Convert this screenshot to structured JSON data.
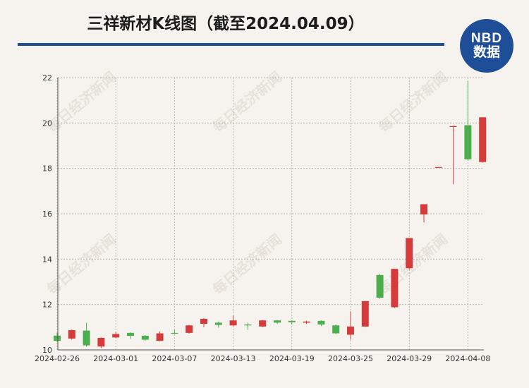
{
  "chart_data": {
    "type": "candlestick",
    "title": "三祥新材K线图（截至2024.04.09）",
    "xlabel": "",
    "ylabel": "",
    "ylim": [
      10,
      22
    ],
    "yticks": [
      10,
      12,
      14,
      16,
      18,
      20,
      22
    ],
    "grid": true,
    "colors": {
      "up": "#d63b3b",
      "down": "#4cae4c"
    },
    "x_tick_labels": [
      "2024-02-26",
      "2024-03-01",
      "2024-03-07",
      "2024-03-13",
      "2024-03-19",
      "2024-03-25",
      "2024-03-29",
      "2024-04-08"
    ],
    "candles": [
      {
        "date": "2024-02-26",
        "open": 10.63,
        "close": 10.4,
        "high": 10.75,
        "low": 10.35
      },
      {
        "date": "2024-02-27",
        "open": 10.5,
        "close": 10.87,
        "high": 10.9,
        "low": 10.45
      },
      {
        "date": "2024-02-28",
        "open": 10.85,
        "close": 10.2,
        "high": 11.2,
        "low": 10.15
      },
      {
        "date": "2024-02-29",
        "open": 10.15,
        "close": 10.53,
        "high": 10.55,
        "low": 10.08
      },
      {
        "date": "2024-03-01",
        "open": 10.55,
        "close": 10.7,
        "high": 10.8,
        "low": 10.52
      },
      {
        "date": "2024-03-04",
        "open": 10.75,
        "close": 10.62,
        "high": 10.78,
        "low": 10.48
      },
      {
        "date": "2024-03-05",
        "open": 10.62,
        "close": 10.45,
        "high": 10.65,
        "low": 10.4
      },
      {
        "date": "2024-03-06",
        "open": 10.4,
        "close": 10.73,
        "high": 10.82,
        "low": 10.38
      },
      {
        "date": "2024-03-07",
        "open": 10.75,
        "close": 10.73,
        "high": 10.88,
        "low": 10.7
      },
      {
        "date": "2024-03-08",
        "open": 10.75,
        "close": 11.08,
        "high": 11.1,
        "low": 10.72
      },
      {
        "date": "2024-03-11",
        "open": 11.15,
        "close": 11.37,
        "high": 11.4,
        "low": 11.0
      },
      {
        "date": "2024-03-12",
        "open": 11.2,
        "close": 11.1,
        "high": 11.25,
        "low": 10.98
      },
      {
        "date": "2024-03-13",
        "open": 11.08,
        "close": 11.3,
        "high": 11.52,
        "low": 11.05
      },
      {
        "date": "2024-03-14",
        "open": 11.12,
        "close": 11.08,
        "high": 11.2,
        "low": 10.88
      },
      {
        "date": "2024-03-15",
        "open": 11.03,
        "close": 11.3,
        "high": 11.32,
        "low": 11.0
      },
      {
        "date": "2024-03-18",
        "open": 11.3,
        "close": 11.2,
        "high": 11.32,
        "low": 11.15
      },
      {
        "date": "2024-03-19",
        "open": 11.28,
        "close": 11.22,
        "high": 11.3,
        "low": 11.12
      },
      {
        "date": "2024-03-20",
        "open": 11.2,
        "close": 11.25,
        "high": 11.28,
        "low": 11.15
      },
      {
        "date": "2024-03-21",
        "open": 11.28,
        "close": 11.12,
        "high": 11.3,
        "low": 11.05
      },
      {
        "date": "2024-03-22",
        "open": 11.08,
        "close": 10.73,
        "high": 11.12,
        "low": 10.7
      },
      {
        "date": "2024-03-25",
        "open": 10.67,
        "close": 11.03,
        "high": 11.7,
        "low": 10.45
      },
      {
        "date": "2024-03-26",
        "open": 11.03,
        "close": 12.15,
        "high": 12.15,
        "low": 11.0
      },
      {
        "date": "2024-03-27",
        "open": 13.3,
        "close": 12.3,
        "high": 13.35,
        "low": 12.25
      },
      {
        "date": "2024-03-28",
        "open": 11.88,
        "close": 13.57,
        "high": 13.57,
        "low": 11.85
      },
      {
        "date": "2024-03-29",
        "open": 13.6,
        "close": 14.93,
        "high": 14.93,
        "low": 13.55
      },
      {
        "date": "2024-04-01",
        "open": 15.97,
        "close": 16.42,
        "high": 16.42,
        "low": 15.62
      },
      {
        "date": "2024-04-02",
        "open": 18.06,
        "close": 18.06,
        "high": 18.06,
        "low": 18.06
      },
      {
        "date": "2024-04-03",
        "open": 19.85,
        "close": 19.86,
        "high": 19.88,
        "low": 17.3
      },
      {
        "date": "2024-04-08",
        "open": 19.9,
        "close": 18.4,
        "high": 21.85,
        "low": 18.35
      },
      {
        "date": "2024-04-09",
        "open": 18.28,
        "close": 20.25,
        "high": 20.25,
        "low": 18.25
      }
    ]
  },
  "logo": {
    "line1": "NBD",
    "line2": "数据"
  },
  "watermark": "每日经济新闻"
}
